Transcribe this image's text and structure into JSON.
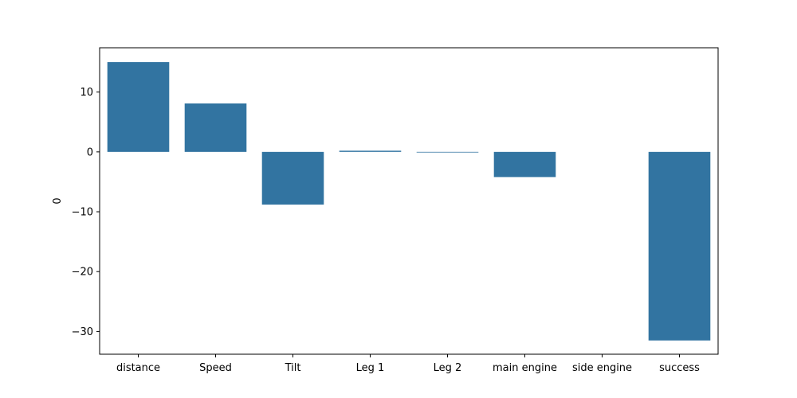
{
  "chart_data": {
    "type": "bar",
    "categories": [
      "distance",
      "Speed",
      "Tilt",
      "Leg 1",
      "Leg 2",
      "main engine",
      "side engine",
      "success"
    ],
    "values": [
      15.0,
      8.1,
      -8.8,
      0.2,
      -0.1,
      -4.2,
      0.0,
      -31.5
    ],
    "xlabel": "",
    "ylabel": "0",
    "ylim": [
      -33.8,
      17.4
    ],
    "yticks": [
      10,
      0,
      -10,
      -20,
      -30
    ],
    "ytick_labels": [
      "10",
      "0",
      "−10",
      "−20",
      "−30"
    ],
    "grid": false,
    "bar_color": "#3274a1"
  }
}
